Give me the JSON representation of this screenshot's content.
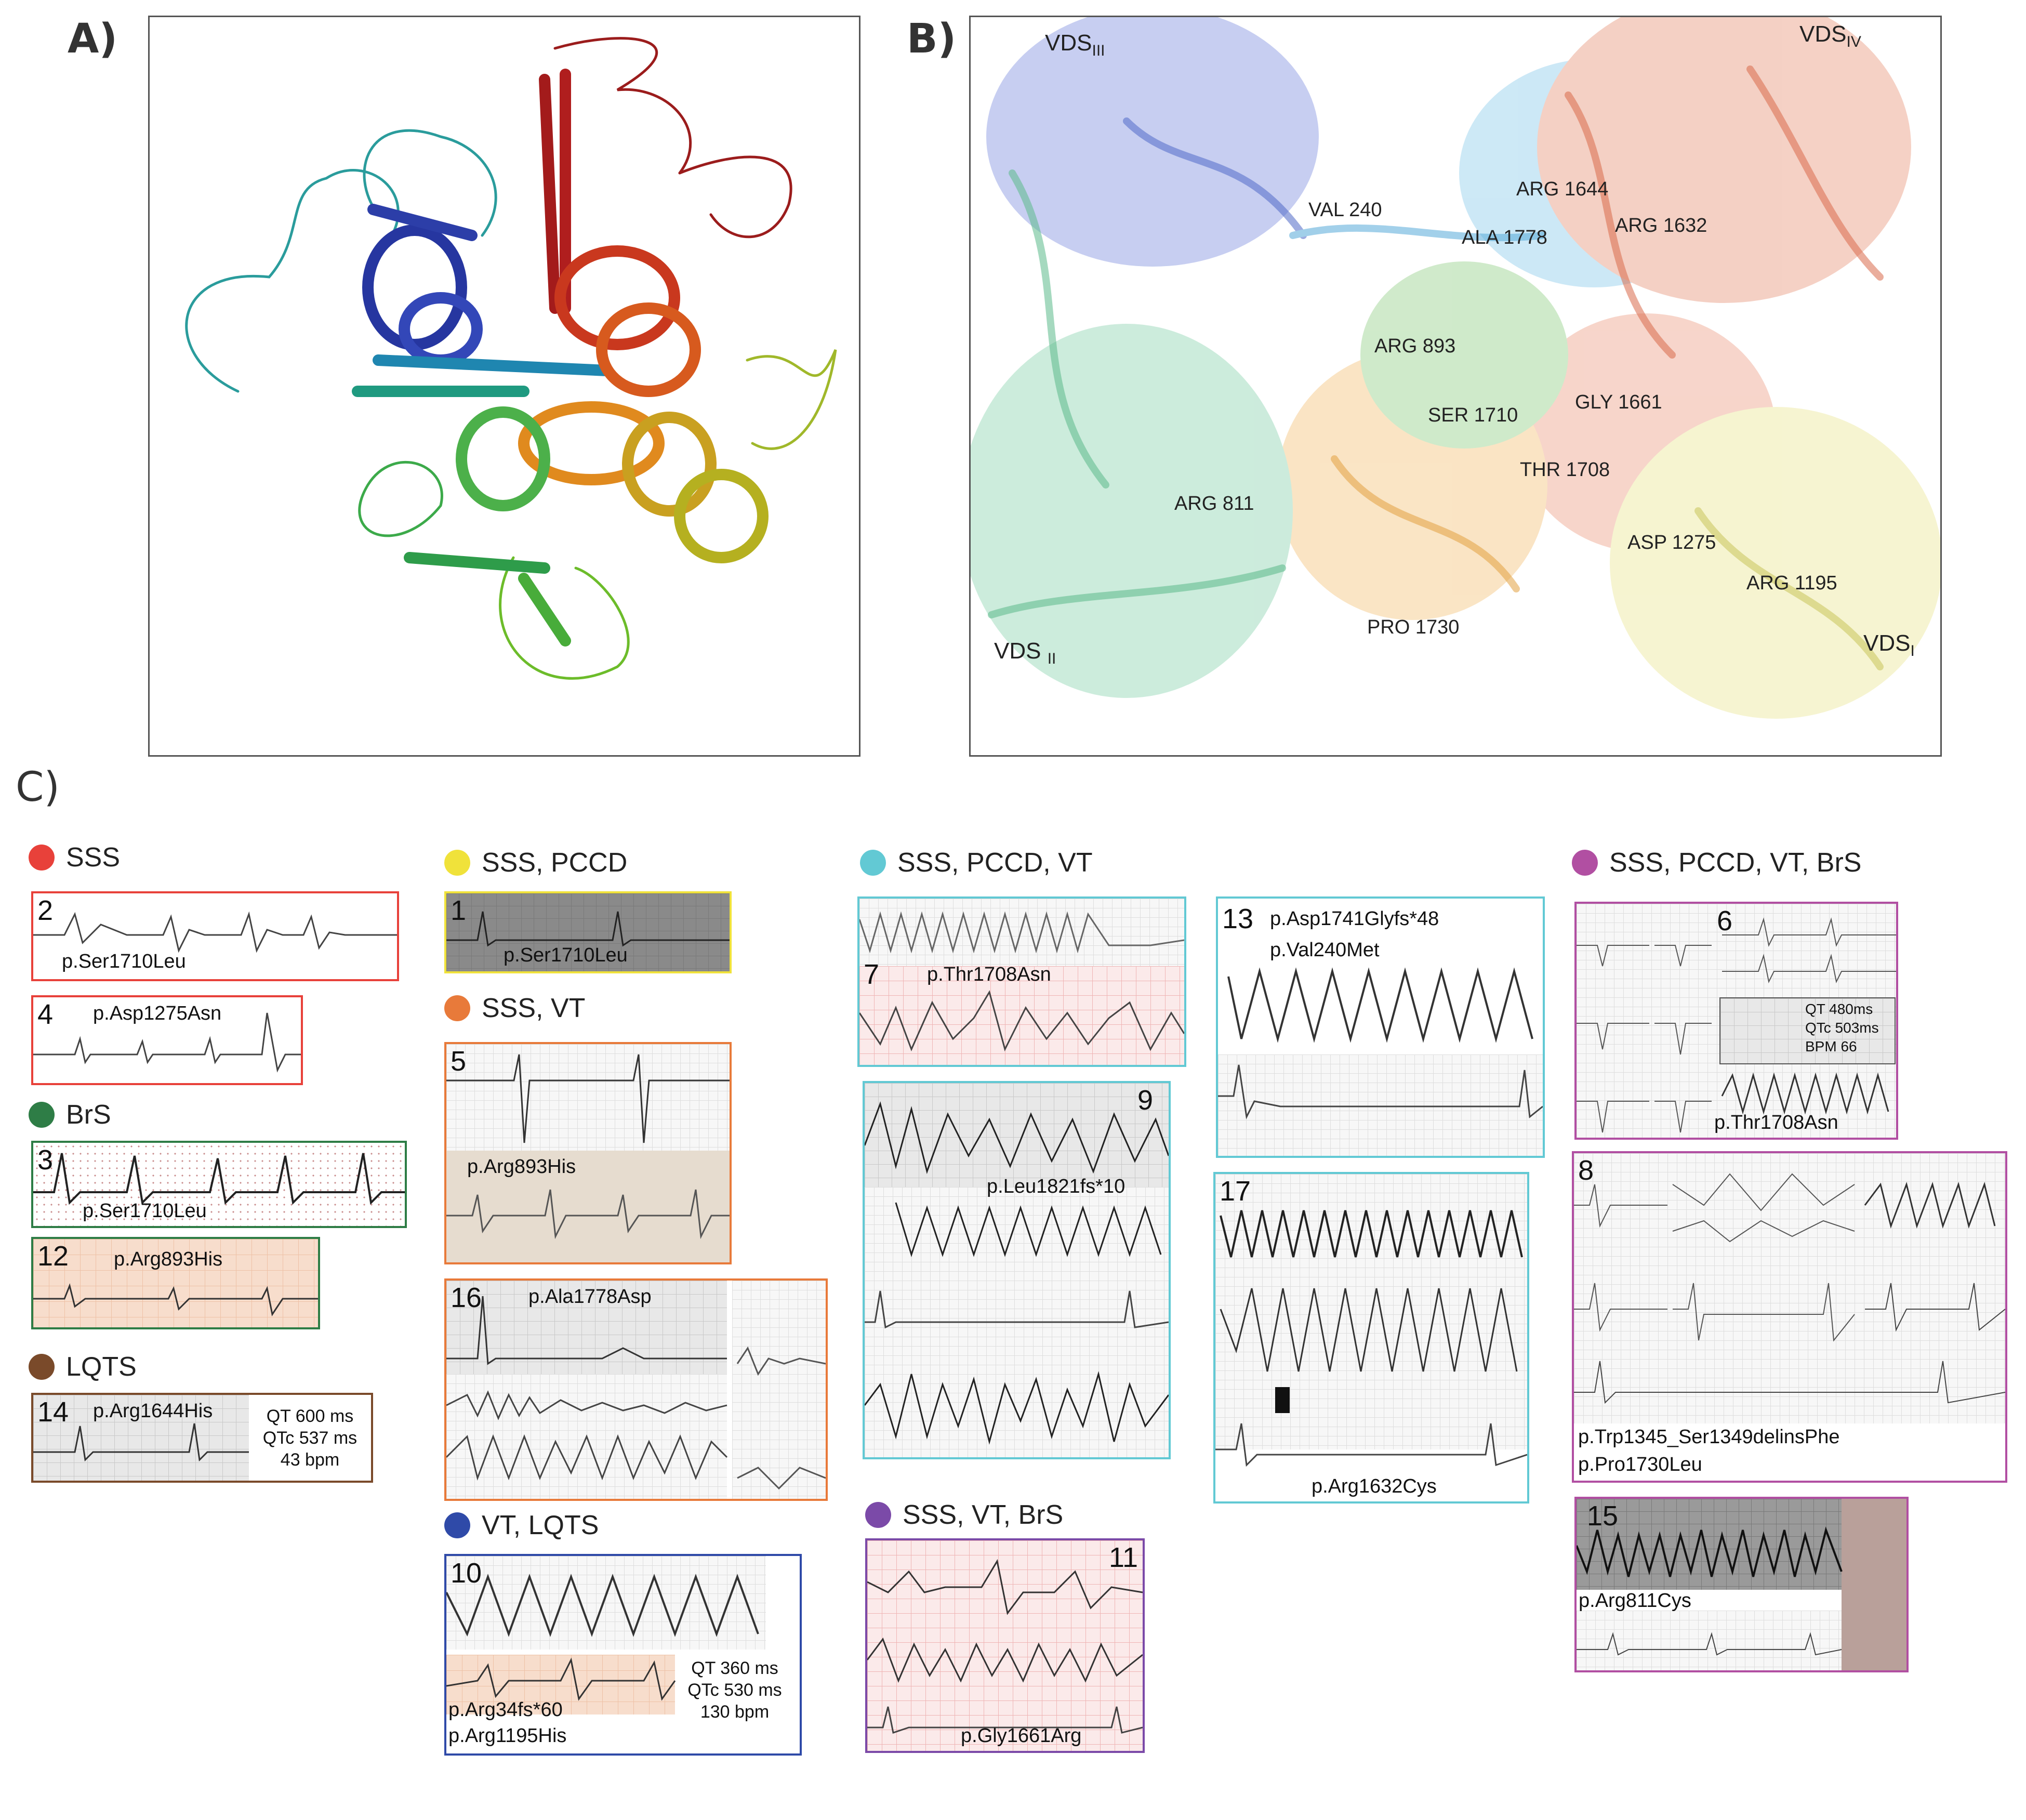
{
  "panels": {
    "a": "A)",
    "b": "B)",
    "c": "C)"
  },
  "structure_b": {
    "vds": [
      {
        "main": "VDS",
        "sub": "III"
      },
      {
        "main": "VDS",
        "sub": "IV"
      },
      {
        "main": "VDS ",
        "sub": "II"
      },
      {
        "main": "VDS",
        "sub": "I"
      }
    ],
    "residues": [
      "VAL 240",
      "ARG 1644",
      "ALA 1778",
      "ARG 1632",
      "ARG 893",
      "SER 1710",
      "GLY 1661",
      "THR 1708",
      "ARG 811",
      "ASP 1275",
      "ARG 1195",
      "PRO 1730"
    ]
  },
  "groups": [
    {
      "label": "SSS",
      "color": "#e8413a"
    },
    {
      "label": "BrS",
      "color": "#2e7d46"
    },
    {
      "label": "LQTS",
      "color": "#7a4a2a"
    },
    {
      "label": "SSS, PCCD",
      "color": "#f0e23a"
    },
    {
      "label": "SSS, VT",
      "color": "#e87a3a"
    },
    {
      "label": "VT, LQTS",
      "color": "#2f4aa8"
    },
    {
      "label": "SSS, PCCD, VT",
      "color": "#62c9d4"
    },
    {
      "label": "SSS, VT, BrS",
      "color": "#7b4aa8"
    },
    {
      "label": "SSS, PCCD, VT, BrS",
      "color": "#b14fa2"
    }
  ],
  "ecgs": {
    "e2": {
      "num": "2",
      "variant": "p.Ser1710Leu"
    },
    "e4": {
      "num": "4",
      "variant": "p.Asp1275Asn"
    },
    "e3": {
      "num": "3",
      "variant": "p.Ser1710Leu"
    },
    "e12": {
      "num": "12",
      "variant": "p.Arg893His"
    },
    "e14": {
      "num": "14",
      "variant": "p.Arg1644His",
      "qt": "QT 600 ms",
      "qtc": "QTc 537 ms",
      "bpm": "43 bpm"
    },
    "e1": {
      "num": "1",
      "variant": "p.Ser1710Leu"
    },
    "e5": {
      "num": "5",
      "variant": "p.Arg893His"
    },
    "e16": {
      "num": "16",
      "variant": "p.Ala1778Asp"
    },
    "e10": {
      "num": "10",
      "variant1": "p.Arg34fs*60",
      "variant2": "p.Arg1195His",
      "qt": "QT 360 ms",
      "qtc": "QTc 530 ms",
      "bpm": "130 bpm"
    },
    "e7": {
      "num": "7",
      "variant": "p.Thr1708Asn"
    },
    "e9": {
      "num": "9",
      "variant": "p.Leu1821fs*10"
    },
    "e11": {
      "num": "11",
      "variant": "p.Gly1661Arg"
    },
    "e13": {
      "num": "13",
      "variant1": "p.Asp1741Glyfs*48",
      "variant2": "p.Val240Met"
    },
    "e17": {
      "num": "17",
      "variant": "p.Arg1632Cys"
    },
    "e6": {
      "num": "6",
      "variant": "p.Thr1708Asn",
      "qt": "QT 480ms",
      "qtc": "QTc 503ms",
      "bpm": "BPM 66"
    },
    "e8": {
      "num": "8",
      "variant1": "p.Trp1345_Ser1349delinsPhe",
      "variant2": "p.Pro1730Leu"
    },
    "e15": {
      "num": "15",
      "variant": "p.Arg811Cys"
    }
  },
  "colors": {
    "sss": "#e8413a",
    "brs": "#2e7d46",
    "lqts": "#7a4a2a",
    "sss_pccd": "#f0e23a",
    "sss_vt": "#e87a3a",
    "vt_lqts": "#2f4aa8",
    "sss_pccd_vt": "#62c9d4",
    "sss_vt_brs": "#7b4aa8",
    "sss_pccd_vt_brs": "#b14fa2"
  }
}
